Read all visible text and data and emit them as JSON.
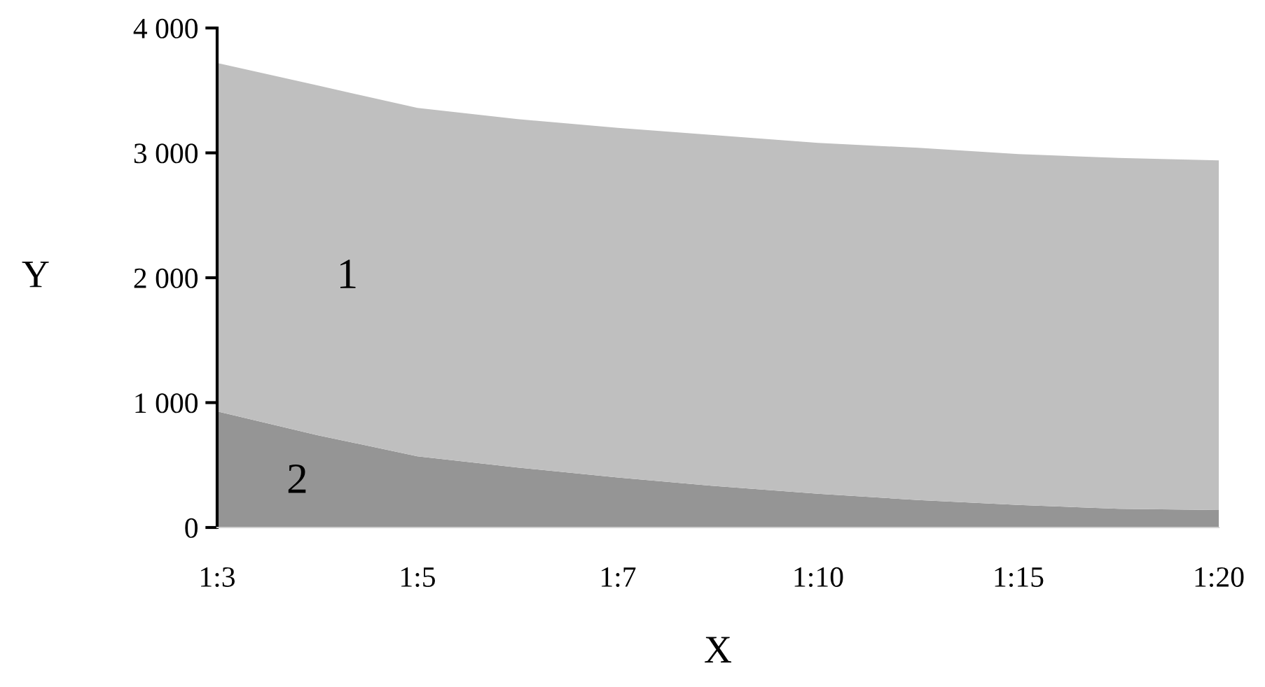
{
  "chart_data": {
    "type": "area",
    "xlabel": "X",
    "ylabel": "Y",
    "categories": [
      "1:3",
      null,
      "1:5",
      null,
      "1:7",
      null,
      "1:10",
      null,
      "1:15",
      null,
      "1:20"
    ],
    "series": [
      {
        "color": "#959595",
        "values": [
          930,
          740,
          570,
          480,
          400,
          330,
          270,
          220,
          180,
          150,
          140
        ]
      },
      {
        "color": "#bfbfbf",
        "values": [
          2790,
          2800,
          2790,
          2790,
          2800,
          2810,
          2810,
          2820,
          2810,
          2810,
          2800
        ]
      }
    ],
    "stacked": true,
    "ylim": [
      0,
      4000
    ],
    "yticks": [
      {
        "value": 0,
        "label": "0"
      },
      {
        "value": 1000,
        "label": "1 000"
      },
      {
        "value": 2000,
        "label": "2 000"
      },
      {
        "value": 3000,
        "label": "3 000"
      },
      {
        "value": 4000,
        "label": "4 000"
      }
    ],
    "annotations": [
      "1",
      "2"
    ],
    "grid": false,
    "legend": false
  }
}
